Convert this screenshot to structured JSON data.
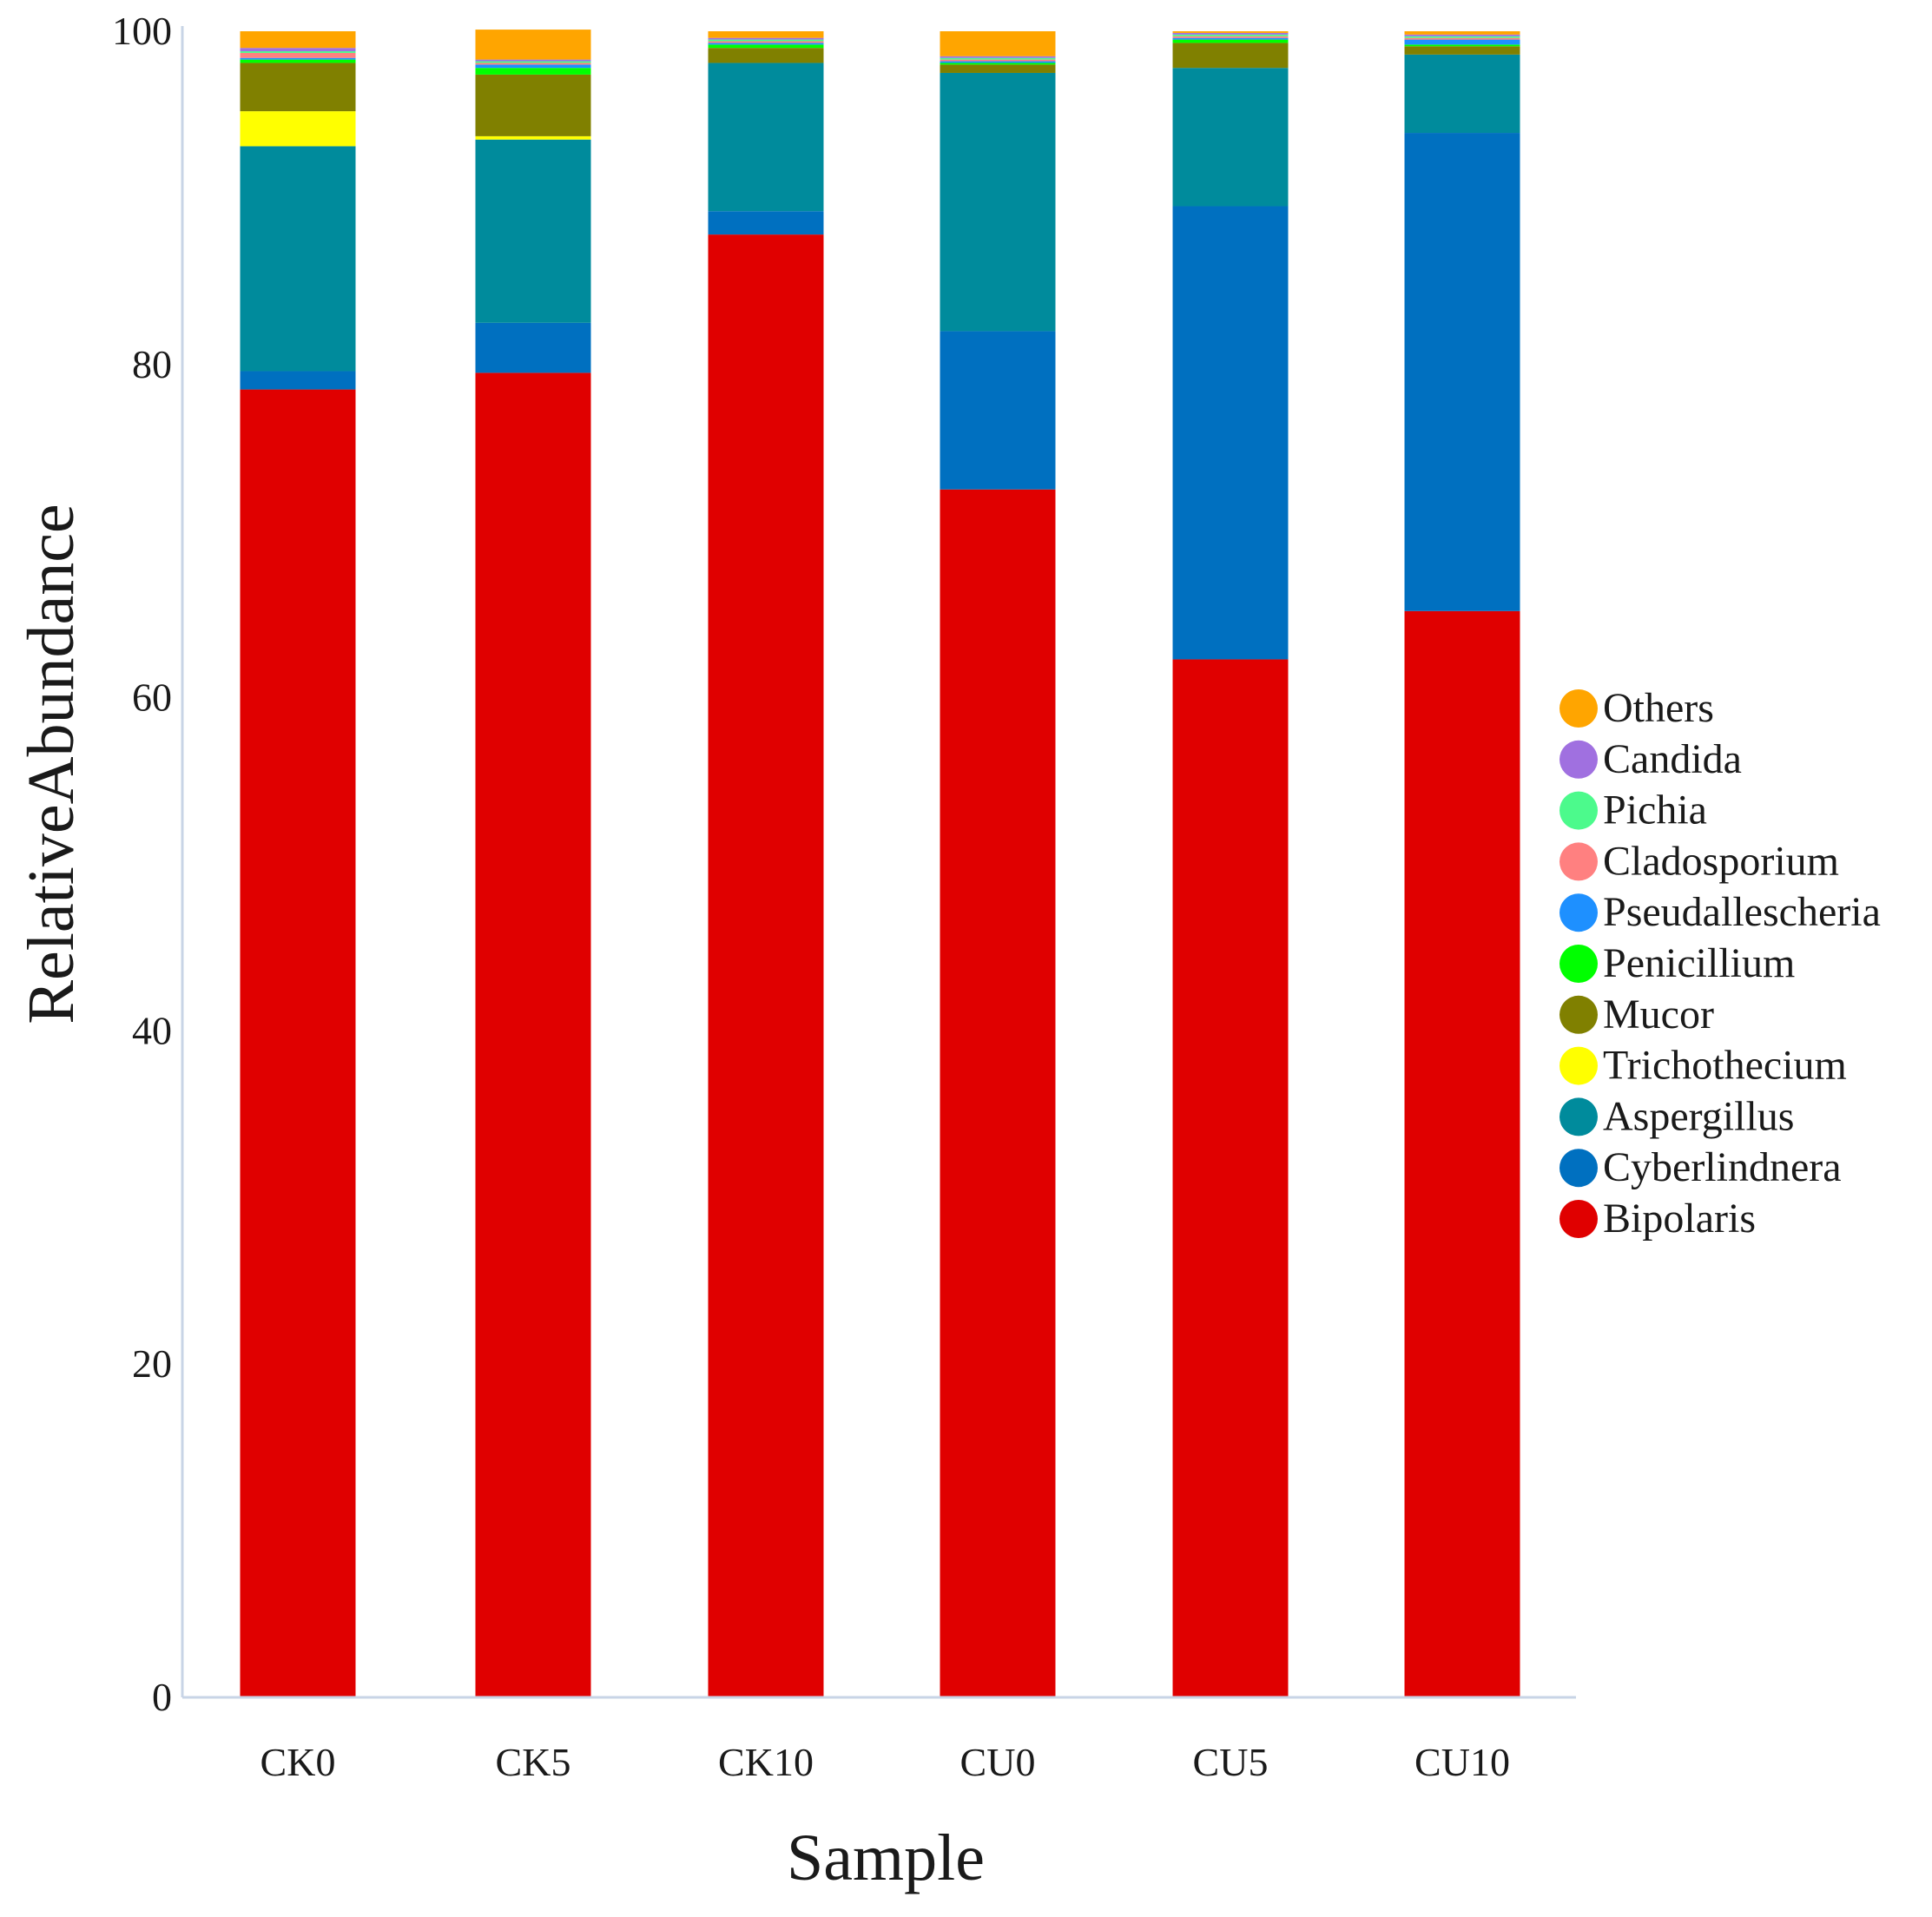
{
  "chart_data": {
    "type": "bar",
    "stacked": true,
    "title": "",
    "xlabel": "Sample",
    "ylabel": "RelativeAbundance",
    "ylim": [
      0,
      100
    ],
    "yticks": [
      0,
      20,
      40,
      60,
      80,
      100
    ],
    "categories": [
      "CK0",
      "CK5",
      "CK10",
      "CU0",
      "CU5",
      "CU10"
    ],
    "series": [
      {
        "name": "Bipolaris",
        "color": "#E00000",
        "values": [
          78.5,
          79.5,
          87.8,
          72.5,
          62.3,
          65.2
        ]
      },
      {
        "name": "Cyberlindnera",
        "color": "#0070C0",
        "values": [
          1.1,
          3.0,
          1.4,
          9.5,
          27.2,
          28.7
        ]
      },
      {
        "name": "Aspergillus",
        "color": "#008B9C",
        "values": [
          13.5,
          11.0,
          8.9,
          15.5,
          8.3,
          4.7
        ]
      },
      {
        "name": "Trichothecium",
        "color": "#FFFF00",
        "values": [
          2.1,
          0.2,
          0.0,
          0.0,
          0.0,
          0.0
        ]
      },
      {
        "name": "Mucor",
        "color": "#808000",
        "values": [
          2.9,
          3.7,
          0.9,
          0.5,
          1.5,
          0.5
        ]
      },
      {
        "name": "Penicillium",
        "color": "#00FF00",
        "values": [
          0.2,
          0.4,
          0.2,
          0.1,
          0.2,
          0.1
        ]
      },
      {
        "name": "Pseudallescheria",
        "color": "#1E90FF",
        "values": [
          0.1,
          0.2,
          0.1,
          0.1,
          0.1,
          0.3
        ]
      },
      {
        "name": "Cladosporium",
        "color": "#FF8080",
        "values": [
          0.3,
          0.1,
          0.1,
          0.1,
          0.1,
          0.1
        ]
      },
      {
        "name": "Pichia",
        "color": "#4CFA8C",
        "values": [
          0.1,
          0.1,
          0.1,
          0.1,
          0.1,
          0.1
        ]
      },
      {
        "name": "Candida",
        "color": "#A070E0",
        "values": [
          0.2,
          0.1,
          0.1,
          0.1,
          0.1,
          0.1
        ]
      },
      {
        "name": "Others",
        "color": "#FFA500",
        "values": [
          1.0,
          1.8,
          0.4,
          1.5,
          0.1,
          0.2
        ]
      }
    ],
    "legend": {
      "placement": "right",
      "order": [
        "Others",
        "Candida",
        "Pichia",
        "Cladosporium",
        "Pseudallescheria",
        "Penicillium",
        "Mucor",
        "Trichothecium",
        "Aspergillus",
        "Cyberlindnera",
        "Bipolaris"
      ]
    },
    "axis_color": "#C8D4E6"
  }
}
